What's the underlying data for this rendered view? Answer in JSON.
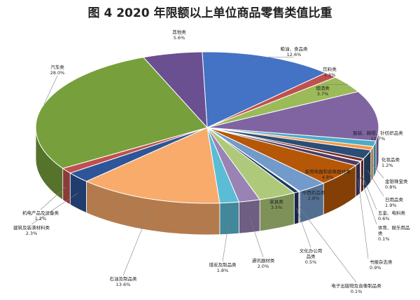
{
  "chart_data": {
    "type": "pie",
    "title": "图 4  2020 年限额以上单位商品零售类值比重",
    "unit": "%",
    "slices": [
      {
        "name": "粮油、食品类",
        "value": 12.6,
        "value_label": "12.6%",
        "color": "#4472C4"
      },
      {
        "name": "饮料类",
        "value": 1.3,
        "value_label": "1.3%",
        "color": "#C0504D"
      },
      {
        "name": "烟酒类",
        "value": 3.7,
        "value_label": "3.7%",
        "color": "#9BBB59"
      },
      {
        "name": "服装、鞋帽、针纺织品类",
        "value": 10.7,
        "value_label": "10.7%",
        "color": "#8064A2"
      },
      {
        "name": "化妆品类",
        "value": 1.2,
        "value_label": "1.2%",
        "color": "#4BACC6"
      },
      {
        "name": "金银珠宝类",
        "value": 0.8,
        "value_label": "0.8%",
        "color": "#F79646"
      },
      {
        "name": "日用品类",
        "value": 1.9,
        "value_label": "1.9%",
        "color": "#2C4D75"
      },
      {
        "name": "五金、电料类",
        "value": 0.6,
        "value_label": "0.6%",
        "color": "#772C2A"
      },
      {
        "name": "体育、娱乐用品类",
        "value": 0.1,
        "value_label": "0.1%",
        "color": "#5F7530"
      },
      {
        "name": "书报杂志类",
        "value": 0.9,
        "value_label": "0.9%",
        "color": "#4D3B62"
      },
      {
        "name": "家用电器和音像器材类",
        "value": 4.8,
        "value_label": "4.8%",
        "color": "#B65708"
      },
      {
        "name": "中西药品类",
        "value": 2.8,
        "value_label": "2.8%",
        "color": "#729ACA"
      },
      {
        "name": "电子出版物及音像制品类",
        "value": 0.1,
        "value_label": "0.1%",
        "color": "#CD7371"
      },
      {
        "name": "文化办公用品类",
        "value": 0.5,
        "value_label": "0.5%",
        "color": "#1F3864"
      },
      {
        "name": "家具类",
        "value": 3.5,
        "value_label": "3.5%",
        "color": "#AFC97A"
      },
      {
        "name": "通讯器材类",
        "value": 2.0,
        "value_label": "2.0%",
        "color": "#9983B5"
      },
      {
        "name": "煤炭及制品类",
        "value": 1.8,
        "value_label": "1.8%",
        "color": "#5BBCD6"
      },
      {
        "name": "石油及制品类",
        "value": 13.6,
        "value_label": "13.6%",
        "color": "#F9AB6B"
      },
      {
        "name": "建筑及装潢材料类",
        "value": 2.3,
        "value_label": "2.3%",
        "color": "#2E5597"
      },
      {
        "name": "机电产品及设备类",
        "value": 1.2,
        "value_label": "1.2%",
        "color": "#C0504D"
      },
      {
        "name": "汽车类",
        "value": 28.0,
        "value_label": "28.0%",
        "color": "#77A03C"
      },
      {
        "name": "其他类",
        "value": 5.6,
        "value_label": "5.6%",
        "color": "#6A4F91"
      }
    ]
  }
}
